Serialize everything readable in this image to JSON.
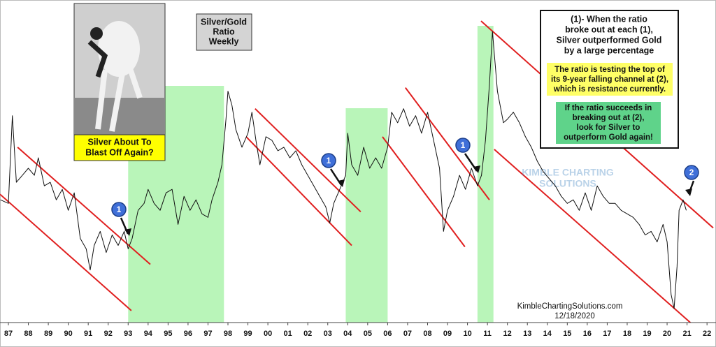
{
  "chart_data": {
    "type": "line",
    "title": [
      "Silver/Gold",
      "Ratio",
      "Weekly"
    ],
    "callout": [
      "Silver About To",
      "Blast Off Again?"
    ],
    "notes": {
      "main": [
        "(1)- When the ratio",
        "broke out at each (1),",
        "Silver outperformed Gold",
        "by a large percentage"
      ],
      "highlight": [
        "The ratio is testing the top of",
        "its 9-year falling channel at (2),",
        "which is resistance currently."
      ],
      "outlook": [
        "If the ratio succeeds in",
        "breaking out at (2),",
        "look for Silver to",
        "outperform Gold again!"
      ]
    },
    "watermark": [
      "KIMBLE CHARTING",
      "SOLUTIONS"
    ],
    "source": "KimbleChartingSolutions.com",
    "date": "12/18/2020",
    "markers": [
      "1",
      "1",
      "1",
      "2"
    ],
    "xlim": [
      1986.58,
      2022.45
    ],
    "ylim": [
      0,
      460
    ],
    "xticks": [
      {
        "value": 1987,
        "label": "87"
      },
      {
        "value": 1988,
        "label": "88"
      },
      {
        "value": 1989,
        "label": "89"
      },
      {
        "value": 1990,
        "label": "90"
      },
      {
        "value": 1991,
        "label": "91"
      },
      {
        "value": 1992,
        "label": "92"
      },
      {
        "value": 1993,
        "label": "93"
      },
      {
        "value": 1994,
        "label": "94"
      },
      {
        "value": 1995,
        "label": "95"
      },
      {
        "value": 1996,
        "label": "96"
      },
      {
        "value": 1997,
        "label": "97"
      },
      {
        "value": 1998,
        "label": "98"
      },
      {
        "value": 1999,
        "label": "99"
      },
      {
        "value": 2000,
        "label": "00"
      },
      {
        "value": 2001,
        "label": "01"
      },
      {
        "value": 2002,
        "label": "02"
      },
      {
        "value": 2003,
        "label": "03"
      },
      {
        "value": 2004,
        "label": "04"
      },
      {
        "value": 2005,
        "label": "05"
      },
      {
        "value": 2006,
        "label": "06"
      },
      {
        "value": 2007,
        "label": "07"
      },
      {
        "value": 2008,
        "label": "08"
      },
      {
        "value": 2009,
        "label": "09"
      },
      {
        "value": 2010,
        "label": "10"
      },
      {
        "value": 2011,
        "label": "11"
      },
      {
        "value": 2012,
        "label": "12"
      },
      {
        "value": 2013,
        "label": "13"
      },
      {
        "value": 2014,
        "label": "14"
      },
      {
        "value": 2015,
        "label": "15"
      },
      {
        "value": 2016,
        "label": "16"
      },
      {
        "value": 2017,
        "label": "17"
      },
      {
        "value": 2018,
        "label": "18"
      },
      {
        "value": 2019,
        "label": "19"
      },
      {
        "value": 2020,
        "label": "20"
      },
      {
        "value": 2021,
        "label": "21"
      },
      {
        "value": 2022,
        "label": "22"
      }
    ],
    "shaded_periods": [
      [
        1993.0,
        1997.8
      ],
      [
        2003.9,
        2006.0
      ],
      [
        2010.5,
        2011.3
      ]
    ],
    "shade_color": "#b9f5b9",
    "trend_color": "#e01f1f",
    "trend_lines": [
      [
        1987.46,
        250,
        1994.11,
        83
      ],
      [
        1986.58,
        183,
        1993.16,
        17
      ],
      [
        1999.36,
        305,
        2004.65,
        158
      ],
      [
        1998.91,
        265,
        2004.2,
        110
      ],
      [
        2006.89,
        335,
        2011.1,
        175
      ],
      [
        2005.74,
        265,
        2009.87,
        108
      ],
      [
        2010.68,
        430,
        2022.31,
        135
      ],
      [
        2011.34,
        247,
        2021.96,
        -20
      ]
    ],
    "color": "#111111",
    "x": [
      1986.6,
      1987.0,
      1987.2,
      1987.4,
      1987.7,
      1988.0,
      1988.3,
      1988.5,
      1988.8,
      1989.1,
      1989.4,
      1989.7,
      1990.0,
      1990.3,
      1990.6,
      1990.9,
      1991.1,
      1991.3,
      1991.6,
      1991.9,
      1992.2,
      1992.5,
      1992.8,
      1993.0,
      1993.2,
      1993.5,
      1993.8,
      1994.0,
      1994.3,
      1994.6,
      1994.9,
      1995.2,
      1995.5,
      1995.8,
      1996.1,
      1996.4,
      1996.7,
      1997.0,
      1997.2,
      1997.5,
      1997.7,
      1997.9,
      1998.0,
      1998.2,
      1998.4,
      1998.7,
      1999.0,
      1999.2,
      1999.4,
      1999.6,
      1999.9,
      2000.2,
      2000.5,
      2000.8,
      2001.1,
      2001.4,
      2001.7,
      2002.0,
      2002.3,
      2002.6,
      2002.9,
      2003.1,
      2003.3,
      2003.6,
      2003.9,
      2004.0,
      2004.2,
      2004.5,
      2004.8,
      2005.1,
      2005.4,
      2005.7,
      2006.0,
      2006.2,
      2006.5,
      2006.8,
      2007.1,
      2007.4,
      2007.7,
      2008.0,
      2008.3,
      2008.6,
      2008.8,
      2009.0,
      2009.3,
      2009.6,
      2009.9,
      2010.2,
      2010.5,
      2010.7,
      2010.9,
      2011.1,
      2011.25,
      2011.5,
      2011.8,
      2012.0,
      2012.3,
      2012.6,
      2012.9,
      2013.2,
      2013.5,
      2013.8,
      2014.1,
      2014.4,
      2014.7,
      2015.0,
      2015.3,
      2015.6,
      2015.9,
      2016.2,
      2016.5,
      2016.8,
      2017.1,
      2017.4,
      2017.7,
      2018.0,
      2018.3,
      2018.6,
      2018.9,
      2019.2,
      2019.5,
      2019.8,
      2020.0,
      2020.2,
      2020.35,
      2020.5,
      2020.6,
      2020.8,
      2020.96
    ],
    "values": [
      175,
      170,
      295,
      200,
      210,
      220,
      210,
      235,
      195,
      200,
      175,
      190,
      160,
      185,
      120,
      105,
      75,
      110,
      130,
      100,
      125,
      110,
      130,
      105,
      120,
      160,
      170,
      190,
      170,
      160,
      185,
      190,
      140,
      180,
      160,
      175,
      155,
      150,
      175,
      200,
      225,
      290,
      330,
      310,
      275,
      250,
      270,
      300,
      260,
      225,
      265,
      260,
      245,
      250,
      235,
      245,
      225,
      210,
      195,
      180,
      165,
      142,
      170,
      190,
      210,
      270,
      225,
      210,
      250,
      220,
      235,
      220,
      250,
      300,
      285,
      305,
      280,
      295,
      270,
      300,
      260,
      220,
      130,
      160,
      180,
      210,
      190,
      220,
      195,
      210,
      260,
      340,
      415,
      330,
      285,
      290,
      300,
      285,
      265,
      250,
      230,
      215,
      205,
      195,
      180,
      170,
      175,
      160,
      185,
      160,
      195,
      180,
      170,
      170,
      160,
      155,
      150,
      140,
      125,
      130,
      115,
      140,
      115,
      40,
      20,
      80,
      160,
      175,
      160
    ]
  }
}
